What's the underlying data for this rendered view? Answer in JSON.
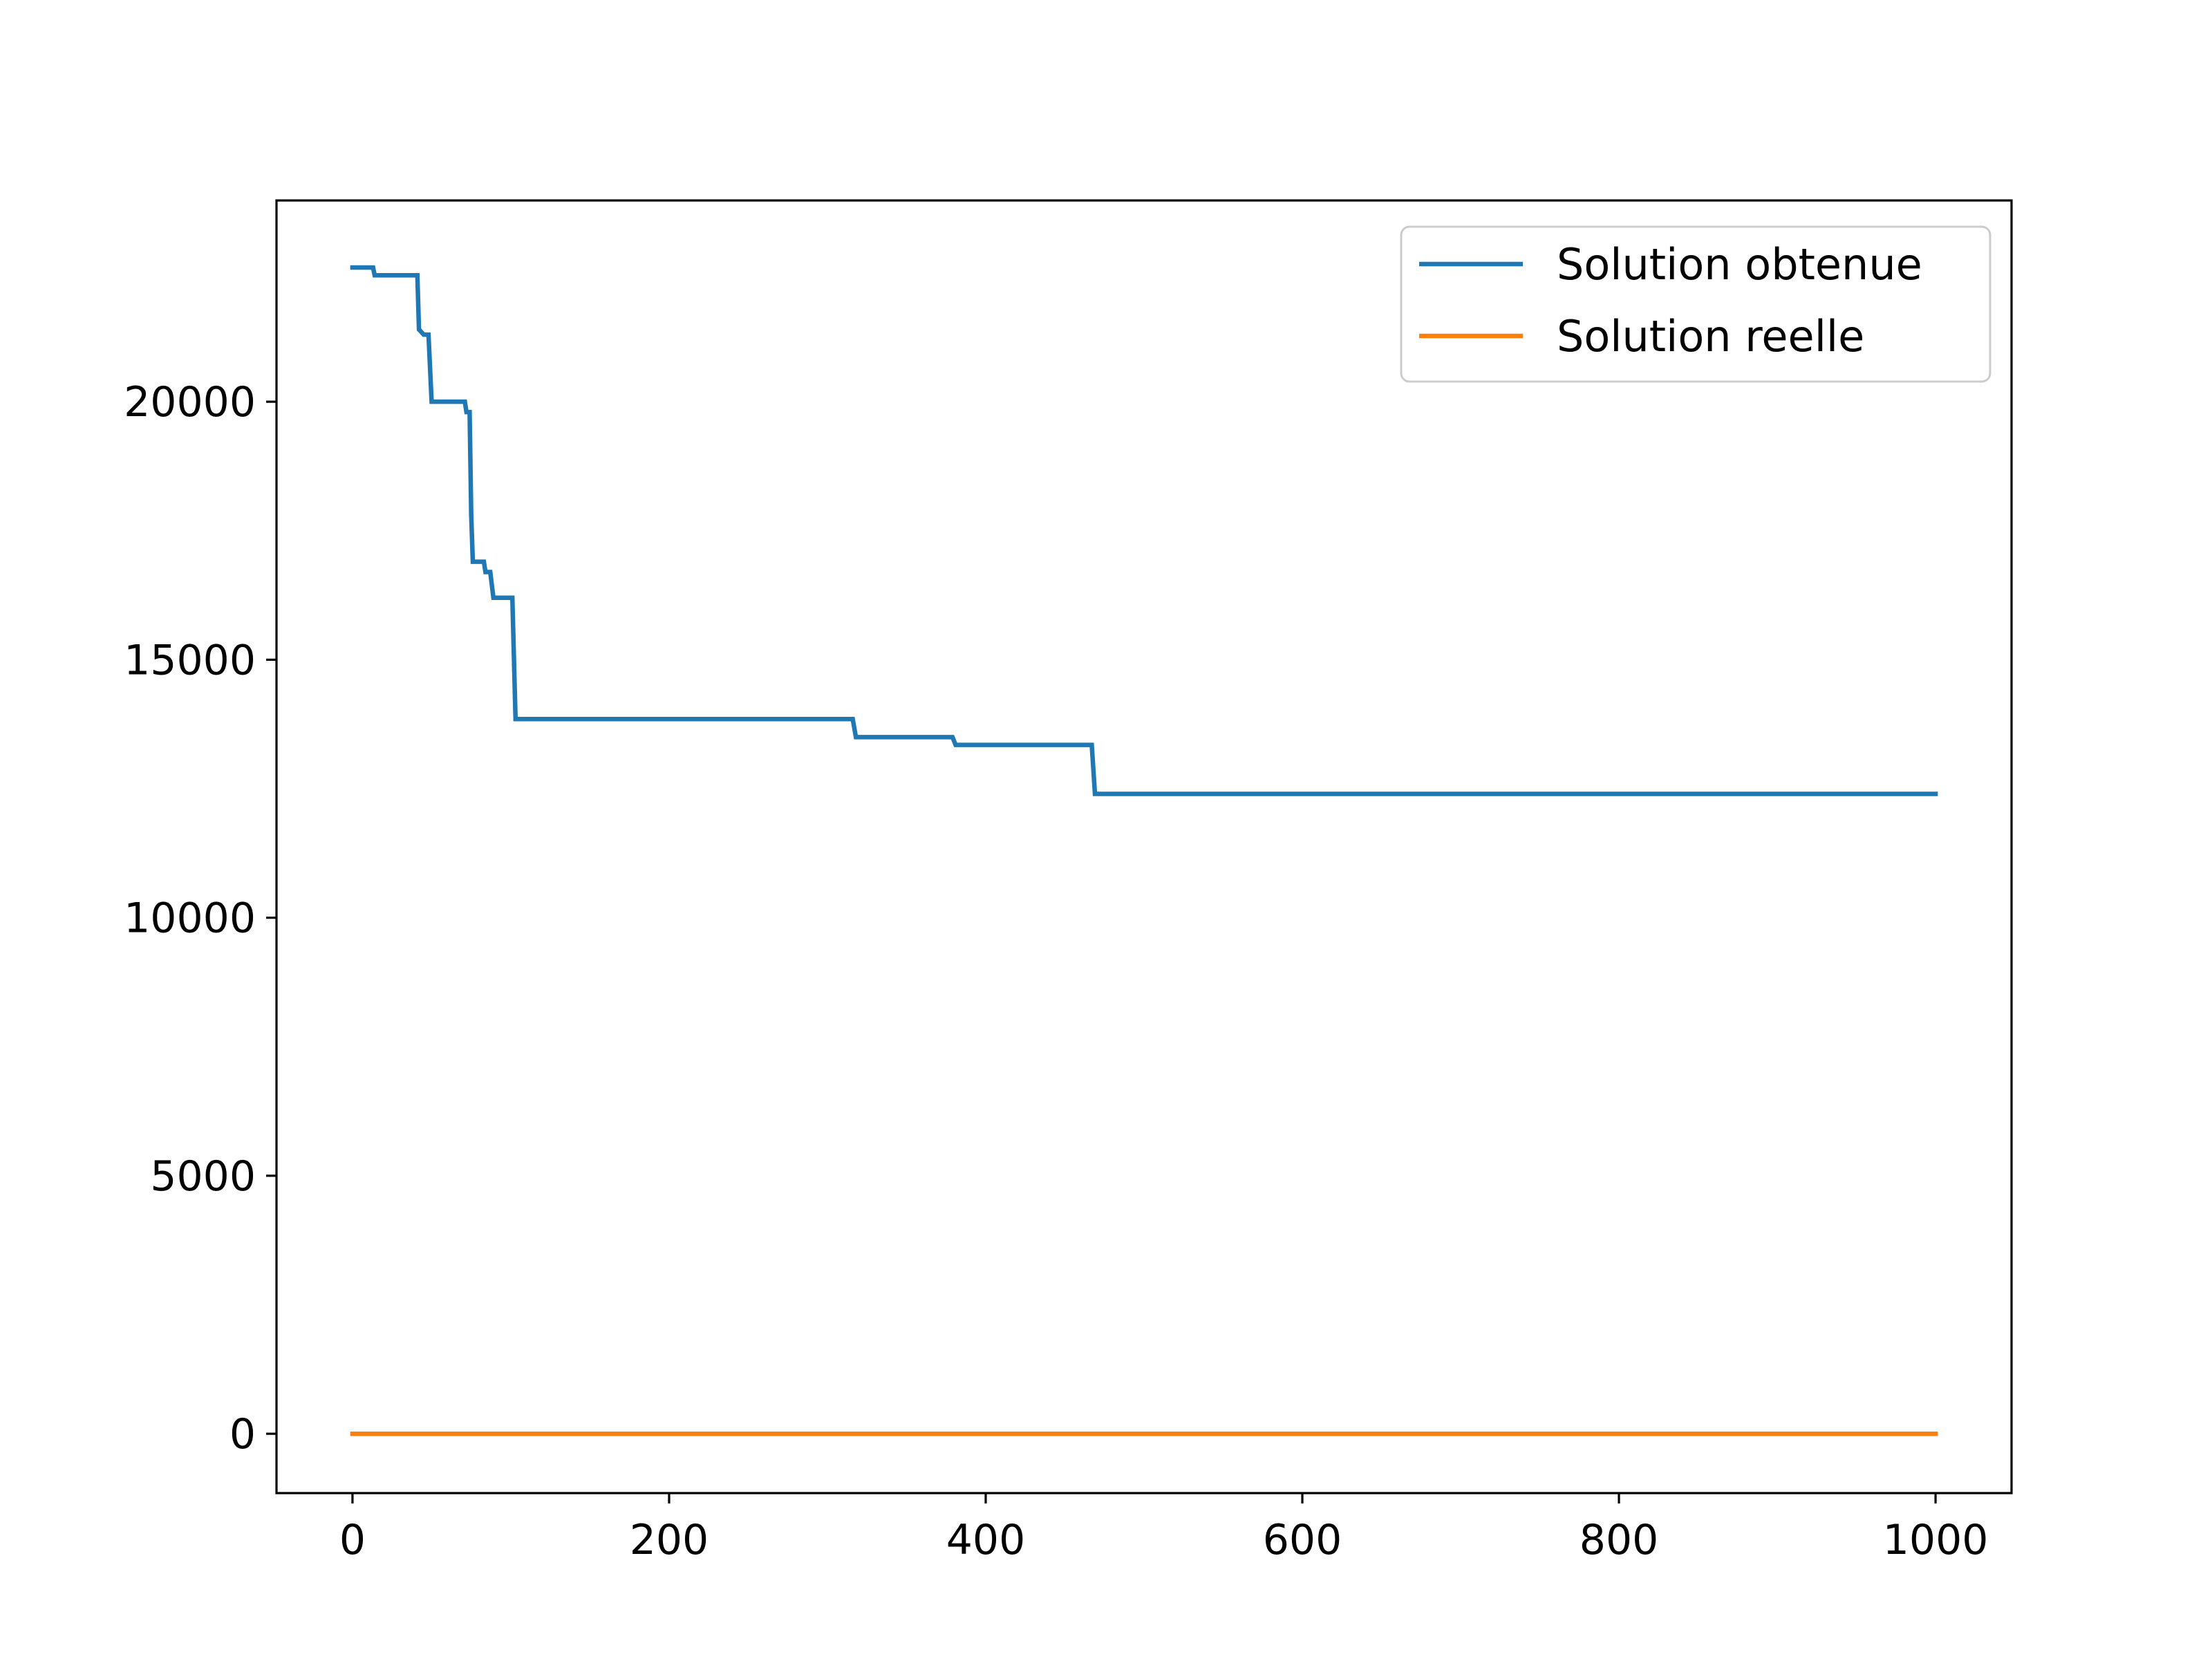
{
  "chart_data": {
    "type": "line",
    "title": "",
    "xlabel": "",
    "ylabel": "",
    "xlim": [
      -48,
      1048
    ],
    "ylim": [
      -1150,
      23900
    ],
    "xticks": [
      0,
      200,
      400,
      600,
      800,
      1000
    ],
    "xtick_labels": [
      "0",
      "200",
      "400",
      "600",
      "800",
      "1000"
    ],
    "yticks": [
      0,
      5000,
      10000,
      15000,
      20000
    ],
    "ytick_labels": [
      "0",
      "5000",
      "10000",
      "15000",
      "20000"
    ],
    "grid": false,
    "legend_position": "top-right",
    "series": [
      {
        "name": "Solution obtenue",
        "color": "#1f77b4",
        "step": true,
        "points": [
          [
            0,
            22600
          ],
          [
            13,
            22600
          ],
          [
            14,
            22450
          ],
          [
            41,
            22450
          ],
          [
            42,
            21400
          ],
          [
            45,
            21300
          ],
          [
            48,
            21300
          ],
          [
            50,
            20000
          ],
          [
            71,
            20000
          ],
          [
            72,
            19800
          ],
          [
            74,
            19800
          ],
          [
            75,
            17800
          ],
          [
            76,
            16900
          ],
          [
            83,
            16900
          ],
          [
            84,
            16700
          ],
          [
            87,
            16700
          ],
          [
            89,
            16200
          ],
          [
            101,
            16200
          ],
          [
            103,
            13850
          ],
          [
            316,
            13850
          ],
          [
            318,
            13500
          ],
          [
            379,
            13500
          ],
          [
            381,
            13350
          ],
          [
            467,
            13350
          ],
          [
            469,
            12400
          ],
          [
            1000,
            12400
          ]
        ]
      },
      {
        "name": "Solution reelle",
        "color": "#ff7f0e",
        "step": false,
        "points": [
          [
            0,
            0
          ],
          [
            1000,
            0
          ]
        ]
      }
    ]
  }
}
